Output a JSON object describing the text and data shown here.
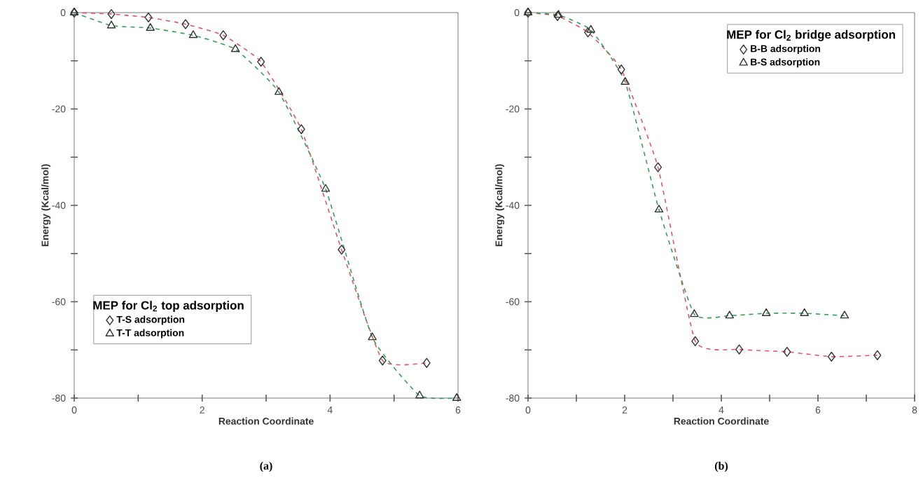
{
  "chart_data": [
    {
      "type": "line",
      "xlabel": "Reaction Coordinate",
      "ylabel": "Energy (Kcal/mol)",
      "legend_title": "MEP for Cl$_{2}$ top adsorption",
      "annotations": [
        "(a)"
      ],
      "legend": "bottom left",
      "line_style": "dashed",
      "grid": false,
      "xlim": [
        0,
        6
      ],
      "ylim": [
        -80,
        0
      ],
      "xticks": [
        0,
        {
          "value": 1,
          "label": null
        },
        2,
        {
          "value": 3,
          "label": null
        },
        4,
        {
          "value": 5,
          "label": null
        },
        6
      ],
      "yticks": [
        -80,
        {
          "value": -70,
          "label": null
        },
        -60,
        {
          "value": -50,
          "label": null
        },
        -40,
        {
          "value": -30,
          "label": null
        },
        -20,
        {
          "value": -10,
          "label": null
        },
        0
      ],
      "series": [
        {
          "name": "T-S adsorption",
          "color": "#e05565",
          "marker": "diamond",
          "x": [
            0,
            0.58,
            1.16,
            1.74,
            2.33,
            2.92,
            3.55,
            4.18,
            4.82,
            5.51
          ],
          "values": [
            0,
            -0.3,
            -1,
            -2.4,
            -4.7,
            -10.2,
            -24.2,
            -49.2,
            -72.2,
            -72.7
          ]
        },
        {
          "name": "T-T adsorption",
          "color": "#35a055",
          "marker": "triangle",
          "x": [
            0,
            0.58,
            1.19,
            1.86,
            2.52,
            3.2,
            3.93,
            4.66,
            5.4,
            5.98
          ],
          "values": [
            0,
            -2.7,
            -3.2,
            -4.7,
            -7.6,
            -16.5,
            -36.6,
            -67.4,
            -79.5,
            -80
          ]
        }
      ]
    },
    {
      "type": "line",
      "xlabel": "Reaction Coordinate",
      "ylabel": "Energy (Kcal/mol)",
      "legend_title": "MEP for Cl$_{2}$ bridge adsorption",
      "annotations": [
        "(b)"
      ],
      "legend": "top right",
      "line_style": "dashed",
      "grid": false,
      "xlim": [
        0,
        8
      ],
      "ylim": [
        -80,
        0
      ],
      "xticks": [
        0,
        {
          "value": 1,
          "label": null
        },
        2,
        {
          "value": 3,
          "label": null
        },
        4,
        {
          "value": 5,
          "label": null
        },
        6,
        {
          "value": 7,
          "label": null
        },
        8
      ],
      "yticks": [
        -80,
        {
          "value": -70,
          "label": null
        },
        -60,
        {
          "value": -50,
          "label": null
        },
        -40,
        {
          "value": -30,
          "label": null
        },
        -20,
        {
          "value": -10,
          "label": null
        },
        0
      ],
      "series": [
        {
          "name": "B-B adsorption",
          "color": "#e05565",
          "marker": "diamond",
          "x": [
            0,
            0.61,
            1.24,
            1.93,
            2.69,
            3.46,
            4.37,
            5.36,
            6.28,
            7.23
          ],
          "values": [
            0,
            -0.7,
            -4.1,
            -11.8,
            -32.1,
            -68.2,
            -69.9,
            -70.4,
            -71.4,
            -71.1
          ]
        },
        {
          "name": "B-S adsorption",
          "color": "#35a055",
          "marker": "triangle",
          "x": [
            0,
            0.63,
            1.3,
            2.01,
            2.71,
            3.44,
            4.17,
            4.93,
            5.72,
            6.55
          ],
          "values": [
            0,
            -0.5,
            -3.6,
            -14.4,
            -40.9,
            -62.6,
            -62.9,
            -62.4,
            -62.4,
            -62.9
          ]
        }
      ]
    }
  ]
}
